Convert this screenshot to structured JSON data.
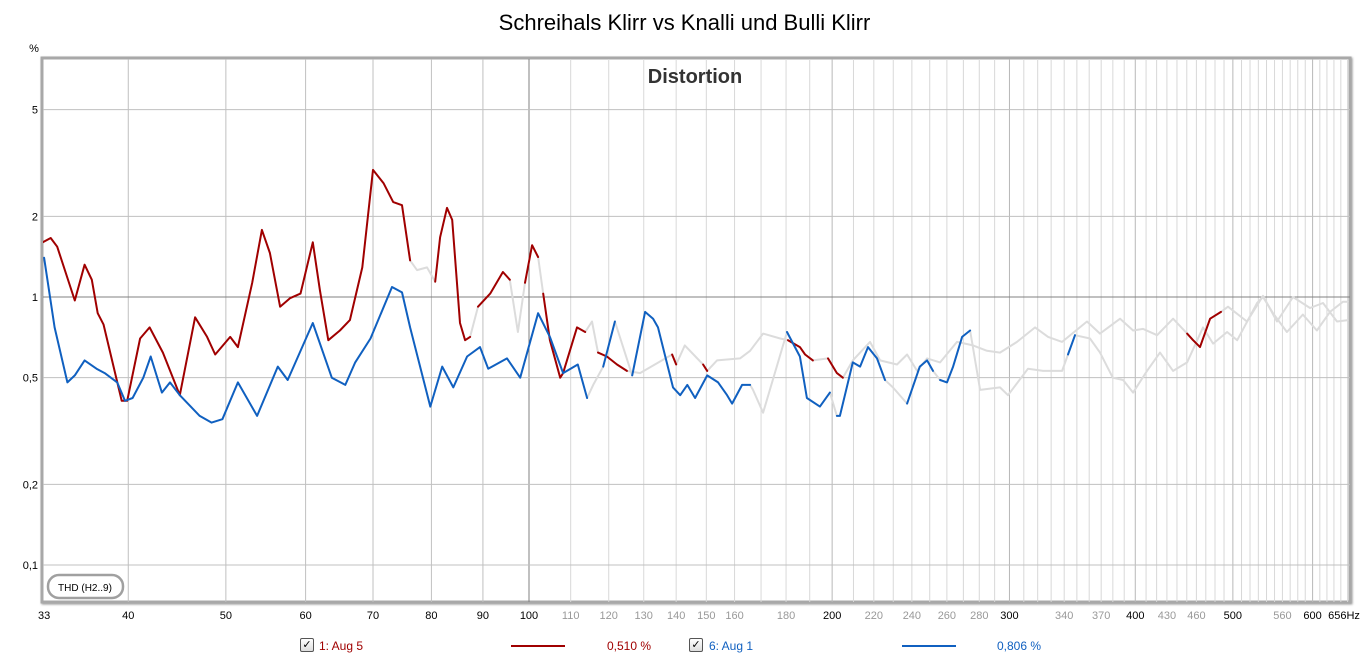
{
  "title": "Schreihals Klirr vs Knalli und Bulli Klirr",
  "chart_data": {
    "type": "line",
    "title": "Distortion",
    "ylabel": "%",
    "xlabel": "",
    "x_unit": "Hz",
    "x_scale": "log",
    "y_scale": "log",
    "xlim": [
      33,
      656
    ],
    "ylim": [
      0.073,
      7.8
    ],
    "grid": true,
    "x_ticks": [
      {
        "v": 33,
        "label": "33",
        "major": true
      },
      {
        "v": 40,
        "label": "40",
        "major": true
      },
      {
        "v": 50,
        "label": "50",
        "major": true
      },
      {
        "v": 60,
        "label": "60",
        "major": true
      },
      {
        "v": 70,
        "label": "70",
        "major": true
      },
      {
        "v": 80,
        "label": "80",
        "major": true
      },
      {
        "v": 90,
        "label": "90",
        "major": true
      },
      {
        "v": 100,
        "label": "100",
        "major": true
      },
      {
        "v": 110,
        "label": "110",
        "major": false
      },
      {
        "v": 120,
        "label": "120",
        "major": false
      },
      {
        "v": 130,
        "label": "130",
        "major": false
      },
      {
        "v": 140,
        "label": "140",
        "major": false
      },
      {
        "v": 150,
        "label": "150",
        "major": false
      },
      {
        "v": 160,
        "label": "160",
        "major": false
      },
      {
        "v": 180,
        "label": "180",
        "major": false
      },
      {
        "v": 200,
        "label": "200",
        "major": true
      },
      {
        "v": 220,
        "label": "220",
        "major": false
      },
      {
        "v": 240,
        "label": "240",
        "major": false
      },
      {
        "v": 260,
        "label": "260",
        "major": false
      },
      {
        "v": 280,
        "label": "280",
        "major": false
      },
      {
        "v": 300,
        "label": "300",
        "major": true
      },
      {
        "v": 340,
        "label": "340",
        "major": false
      },
      {
        "v": 370,
        "label": "370",
        "major": false
      },
      {
        "v": 400,
        "label": "400",
        "major": true
      },
      {
        "v": 430,
        "label": "430",
        "major": false
      },
      {
        "v": 460,
        "label": "460",
        "major": false
      },
      {
        "v": 500,
        "label": "500",
        "major": true
      },
      {
        "v": 560,
        "label": "560",
        "major": false
      },
      {
        "v": 600,
        "label": "600",
        "major": true
      },
      {
        "v": 656,
        "label": "656Hz",
        "major": true
      }
    ],
    "y_ticks": [
      {
        "v": 5,
        "label": "5"
      },
      {
        "v": 2,
        "label": "2"
      },
      {
        "v": 1,
        "label": "1"
      },
      {
        "v": 0.5,
        "label": "0,5"
      },
      {
        "v": 0.2,
        "label": "0,2"
      },
      {
        "v": 0.1,
        "label": "0,1"
      }
    ],
    "annotation": "THD (H2..9)",
    "inactive_color": "#dcdcdc",
    "series": [
      {
        "name": "1: Aug 5",
        "color": "#a00000",
        "value_label": "0,510 %",
        "checked": true,
        "gray_ranges": [
          [
            76,
            81
          ],
          [
            87,
            88.5
          ],
          [
            95,
            98.5
          ],
          [
            102,
            103
          ],
          [
            114,
            117
          ],
          [
            124,
            138
          ],
          [
            141,
            148
          ],
          [
            152,
            180
          ],
          [
            190,
            197
          ],
          [
            204,
            450
          ],
          [
            490,
            656
          ]
        ],
        "points": [
          [
            32.9,
            1.6
          ],
          [
            33.5,
            1.66
          ],
          [
            34.0,
            1.54
          ],
          [
            35.4,
            0.97
          ],
          [
            36.2,
            1.32
          ],
          [
            36.8,
            1.16
          ],
          [
            37.3,
            0.87
          ],
          [
            37.8,
            0.79
          ],
          [
            39.4,
            0.41
          ],
          [
            39.9,
            0.41
          ],
          [
            41.1,
            0.7
          ],
          [
            42.0,
            0.77
          ],
          [
            43.3,
            0.62
          ],
          [
            45.0,
            0.43
          ],
          [
            46.6,
            0.84
          ],
          [
            47.9,
            0.71
          ],
          [
            48.8,
            0.61
          ],
          [
            50.5,
            0.71
          ],
          [
            51.4,
            0.65
          ],
          [
            53.1,
            1.13
          ],
          [
            54.3,
            1.78
          ],
          [
            55.3,
            1.46
          ],
          [
            56.6,
            0.92
          ],
          [
            57.9,
            0.99
          ],
          [
            59.3,
            1.03
          ],
          [
            61.0,
            1.6
          ],
          [
            62.0,
            1.06
          ],
          [
            63.2,
            0.69
          ],
          [
            64.9,
            0.75
          ],
          [
            66.4,
            0.82
          ],
          [
            68.3,
            1.29
          ],
          [
            70.0,
            2.98
          ],
          [
            71.7,
            2.66
          ],
          [
            73.3,
            2.26
          ],
          [
            74.8,
            2.2
          ],
          [
            76.2,
            1.37
          ],
          [
            77.4,
            1.26
          ],
          [
            79.2,
            1.29
          ],
          [
            80.7,
            1.14
          ],
          [
            81.6,
            1.67
          ],
          [
            82.9,
            2.15
          ],
          [
            83.9,
            1.94
          ],
          [
            85.4,
            0.8
          ],
          [
            86.4,
            0.69
          ],
          [
            87.4,
            0.71
          ],
          [
            89.0,
            0.92
          ],
          [
            91.5,
            1.03
          ],
          [
            94.2,
            1.24
          ],
          [
            95.7,
            1.16
          ],
          [
            97.5,
            0.74
          ],
          [
            99.1,
            1.13
          ],
          [
            100.7,
            1.56
          ],
          [
            102.1,
            1.41
          ],
          [
            103.3,
            1.03
          ],
          [
            104.9,
            0.69
          ],
          [
            107.4,
            0.5
          ],
          [
            108.1,
            0.52
          ],
          [
            111.6,
            0.77
          ],
          [
            113.7,
            0.74
          ],
          [
            115.5,
            0.81
          ],
          [
            117.1,
            0.62
          ],
          [
            119.5,
            0.6
          ],
          [
            122.3,
            0.56
          ],
          [
            125.1,
            0.53
          ],
          [
            128.9,
            0.52
          ],
          [
            138.7,
            0.61
          ],
          [
            140.0,
            0.56
          ],
          [
            142.8,
            0.66
          ],
          [
            148.9,
            0.56
          ],
          [
            150.3,
            0.53
          ],
          [
            153.7,
            0.58
          ],
          [
            162.0,
            0.59
          ],
          [
            165.8,
            0.63
          ],
          [
            170.8,
            0.73
          ],
          [
            177.6,
            0.7
          ],
          [
            180.8,
            0.69
          ],
          [
            185.8,
            0.65
          ],
          [
            188.0,
            0.61
          ],
          [
            191.4,
            0.58
          ],
          [
            198.1,
            0.59
          ],
          [
            202.2,
            0.52
          ],
          [
            205.0,
            0.5
          ],
          [
            209.7,
            0.58
          ],
          [
            218.1,
            0.68
          ],
          [
            223.2,
            0.58
          ],
          [
            232.0,
            0.56
          ],
          [
            237.4,
            0.61
          ],
          [
            242.9,
            0.53
          ],
          [
            248.5,
            0.59
          ],
          [
            256.0,
            0.57
          ],
          [
            266.1,
            0.68
          ],
          [
            276.0,
            0.66
          ],
          [
            285.0,
            0.63
          ],
          [
            293.6,
            0.62
          ],
          [
            305.2,
            0.68
          ],
          [
            318.1,
            0.77
          ],
          [
            327.7,
            0.71
          ],
          [
            338.4,
            0.68
          ],
          [
            358.2,
            0.81
          ],
          [
            369.0,
            0.73
          ],
          [
            386.4,
            0.83
          ],
          [
            398.0,
            0.75
          ],
          [
            407.2,
            0.76
          ],
          [
            420.5,
            0.72
          ],
          [
            436.1,
            0.83
          ],
          [
            450.3,
            0.73
          ],
          [
            456.5,
            0.69
          ],
          [
            463.8,
            0.65
          ],
          [
            474.6,
            0.83
          ],
          [
            486.6,
            0.88
          ],
          [
            494.5,
            0.92
          ],
          [
            516.4,
            0.81
          ],
          [
            535.7,
            1.01
          ],
          [
            553.1,
            0.81
          ],
          [
            573.7,
            1.0
          ],
          [
            596.5,
            0.91
          ],
          [
            614.5,
            0.95
          ],
          [
            634.5,
            0.81
          ],
          [
            650.6,
            0.82
          ]
        ]
      },
      {
        "name": "6: Aug 1",
        "color": "#1060c0",
        "value_label": "0,806 %",
        "checked": true,
        "gray_ranges": [
          [
            114.5,
            118
          ],
          [
            122,
            126
          ],
          [
            166,
            180
          ],
          [
            199,
            202
          ],
          [
            226,
            237
          ],
          [
            251,
            256
          ],
          [
            272,
            343
          ],
          [
            349,
            656
          ]
        ],
        "points": [
          [
            33.0,
            1.4
          ],
          [
            33.8,
            0.77
          ],
          [
            34.8,
            0.48
          ],
          [
            35.4,
            0.51
          ],
          [
            36.2,
            0.58
          ],
          [
            37.2,
            0.54
          ],
          [
            37.9,
            0.52
          ],
          [
            39.0,
            0.48
          ],
          [
            39.7,
            0.41
          ],
          [
            40.4,
            0.42
          ],
          [
            41.4,
            0.5
          ],
          [
            42.1,
            0.6
          ],
          [
            43.2,
            0.44
          ],
          [
            44.0,
            0.48
          ],
          [
            45.0,
            0.43
          ],
          [
            47.1,
            0.36
          ],
          [
            48.4,
            0.34
          ],
          [
            49.6,
            0.35
          ],
          [
            51.4,
            0.48
          ],
          [
            53.7,
            0.36
          ],
          [
            56.3,
            0.55
          ],
          [
            57.6,
            0.49
          ],
          [
            61.0,
            0.8
          ],
          [
            63.7,
            0.5
          ],
          [
            65.7,
            0.47
          ],
          [
            67.2,
            0.57
          ],
          [
            69.6,
            0.7
          ],
          [
            73.1,
            1.09
          ],
          [
            74.8,
            1.04
          ],
          [
            76.2,
            0.77
          ],
          [
            79.8,
            0.39
          ],
          [
            82.0,
            0.55
          ],
          [
            84.1,
            0.46
          ],
          [
            86.8,
            0.6
          ],
          [
            89.4,
            0.65
          ],
          [
            91.1,
            0.54
          ],
          [
            95.1,
            0.59
          ],
          [
            98.0,
            0.5
          ],
          [
            102.1,
            0.87
          ],
          [
            104.9,
            0.71
          ],
          [
            108.1,
            0.52
          ],
          [
            111.8,
            0.56
          ],
          [
            114.2,
            0.42
          ],
          [
            115.8,
            0.47
          ],
          [
            118.5,
            0.55
          ],
          [
            121.7,
            0.81
          ],
          [
            126.6,
            0.51
          ],
          [
            130.4,
            0.88
          ],
          [
            132.8,
            0.83
          ],
          [
            134.3,
            0.77
          ],
          [
            139.0,
            0.46
          ],
          [
            141.3,
            0.43
          ],
          [
            143.6,
            0.47
          ],
          [
            146.2,
            0.42
          ],
          [
            150.3,
            0.51
          ],
          [
            154.1,
            0.48
          ],
          [
            157.3,
            0.43
          ],
          [
            159.1,
            0.4
          ],
          [
            162.8,
            0.47
          ],
          [
            165.8,
            0.47
          ],
          [
            166.9,
            0.45
          ],
          [
            170.8,
            0.37
          ],
          [
            180.4,
            0.74
          ],
          [
            185.8,
            0.6
          ],
          [
            188.8,
            0.42
          ],
          [
            194.5,
            0.39
          ],
          [
            199.0,
            0.44
          ],
          [
            202.2,
            0.36
          ],
          [
            203.6,
            0.36
          ],
          [
            209.7,
            0.57
          ],
          [
            213.2,
            0.55
          ],
          [
            217.1,
            0.65
          ],
          [
            221.6,
            0.59
          ],
          [
            225.7,
            0.49
          ],
          [
            229.8,
            0.46
          ],
          [
            237.4,
            0.4
          ],
          [
            244.4,
            0.55
          ],
          [
            248.5,
            0.58
          ],
          [
            251.9,
            0.53
          ],
          [
            256.0,
            0.49
          ],
          [
            260.1,
            0.48
          ],
          [
            263.7,
            0.55
          ],
          [
            269.2,
            0.71
          ],
          [
            274.2,
            0.75
          ],
          [
            280.5,
            0.45
          ],
          [
            293.6,
            0.46
          ],
          [
            299.0,
            0.43
          ],
          [
            313.0,
            0.54
          ],
          [
            324.0,
            0.53
          ],
          [
            338.4,
            0.53
          ],
          [
            343.0,
            0.61
          ],
          [
            348.5,
            0.72
          ],
          [
            360.7,
            0.7
          ],
          [
            369.0,
            0.62
          ],
          [
            380.0,
            0.5
          ],
          [
            389.0,
            0.49
          ],
          [
            398.0,
            0.44
          ],
          [
            410.9,
            0.53
          ],
          [
            423.3,
            0.62
          ],
          [
            436.1,
            0.53
          ],
          [
            450.3,
            0.57
          ],
          [
            467.0,
            0.77
          ],
          [
            477.9,
            0.67
          ],
          [
            493.5,
            0.74
          ],
          [
            505.0,
            0.69
          ],
          [
            528.5,
            0.95
          ],
          [
            535.7,
            1.0
          ],
          [
            548.0,
            0.87
          ],
          [
            565.8,
            0.74
          ],
          [
            586.9,
            0.86
          ],
          [
            606.0,
            0.75
          ],
          [
            624.3,
            0.88
          ],
          [
            643.1,
            0.96
          ],
          [
            650.6,
            0.96
          ]
        ]
      }
    ]
  }
}
